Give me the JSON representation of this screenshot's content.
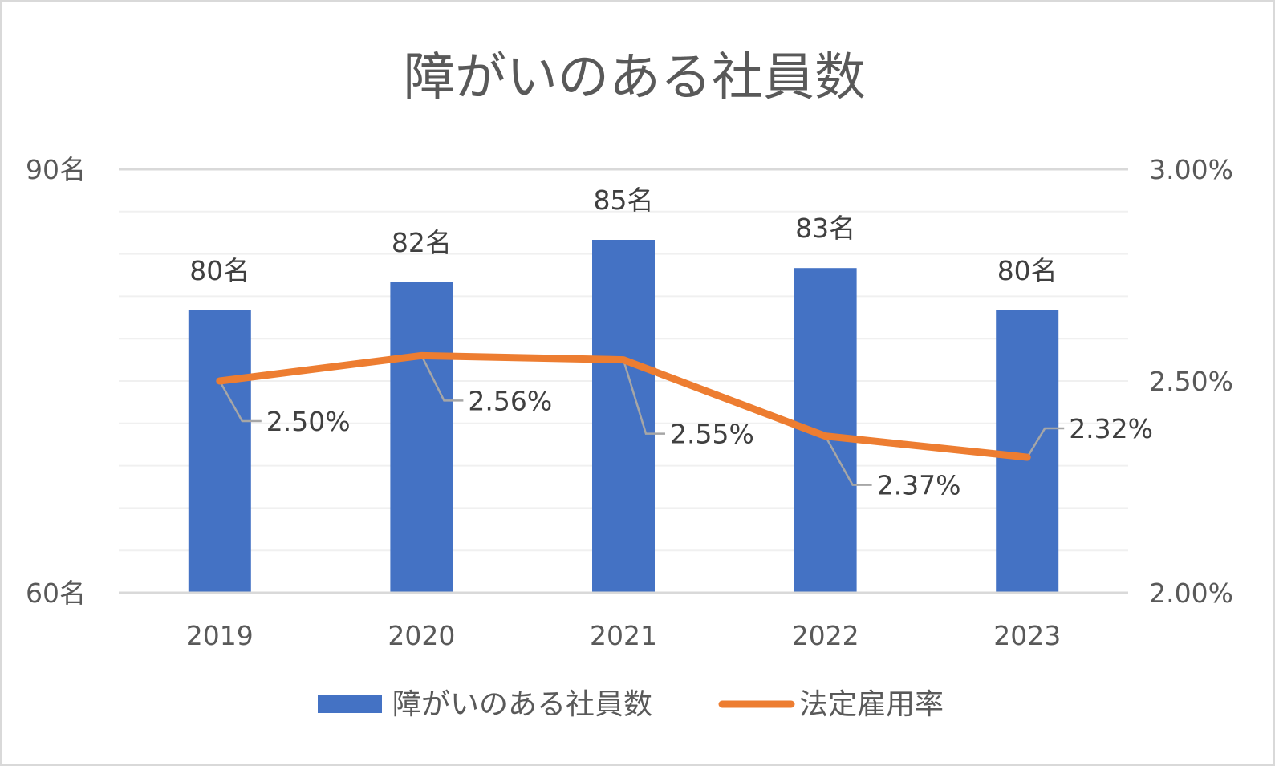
{
  "chart_data": {
    "type": "bar",
    "title": "障がいのある社員数",
    "categories": [
      "2019",
      "2020",
      "2021",
      "2022",
      "2023"
    ],
    "series": [
      {
        "name": "障がいのある社員数",
        "type": "bar",
        "axis": "left",
        "color": "#4472c4",
        "values": [
          80,
          82,
          85,
          83,
          80
        ],
        "value_labels": [
          "80名",
          "82名",
          "85名",
          "83名",
          "80名"
        ]
      },
      {
        "name": "法定雇用率",
        "type": "line",
        "axis": "right",
        "color": "#ed7d31",
        "values": [
          2.5,
          2.56,
          2.55,
          2.37,
          2.32
        ],
        "value_labels": [
          "2.50%",
          "2.56%",
          "2.55%",
          "2.37%",
          "2.32%"
        ]
      }
    ],
    "y_left": {
      "min": 60,
      "max": 90,
      "ticks": [
        60,
        90
      ],
      "tick_labels": [
        "60名",
        "90名"
      ],
      "minor_gridlines": 10
    },
    "y_right": {
      "min": 2.0,
      "max": 3.0,
      "ticks": [
        2.0,
        2.5,
        3.0
      ],
      "tick_labels": [
        "2.00%",
        "2.50%",
        "3.00%"
      ]
    },
    "legend": {
      "position": "bottom",
      "entries": [
        "障がいのある社員数",
        "法定雇用率"
      ]
    },
    "grid": true,
    "colors": {
      "gridline": "#d9d9d9",
      "axis": "#d9d9d9",
      "leader_line": "#a6a6a6"
    }
  }
}
